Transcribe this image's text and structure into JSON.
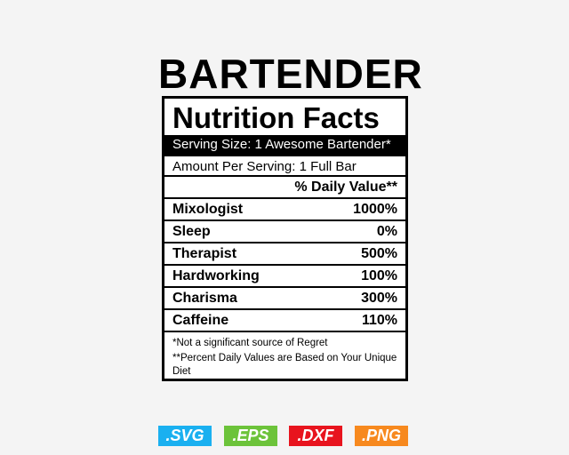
{
  "title": "BARTENDER",
  "label": {
    "heading": "Nutrition Facts",
    "serving": "Serving Size: 1 Awesome Bartender*",
    "amount": "Amount Per Serving: 1 Full Bar",
    "dv_header": "% Daily Value**",
    "rows": [
      {
        "name": "Mixologist",
        "value": "1000%"
      },
      {
        "name": "Sleep",
        "value": "0%"
      },
      {
        "name": "Therapist",
        "value": "500%"
      },
      {
        "name": "Hardworking",
        "value": "100%"
      },
      {
        "name": "Charisma",
        "value": "300%"
      },
      {
        "name": "Caffeine",
        "value": "110%"
      }
    ],
    "note1": "*Not a significant source of Regret",
    "note2": "**Percent Daily Values are Based on Your Unique Diet"
  },
  "badges": [
    {
      "label": ".SVG",
      "color": "#1ab0f0"
    },
    {
      "label": ".EPS",
      "color": "#6cc33a"
    },
    {
      "label": ".DXF",
      "color": "#e8141e"
    },
    {
      "label": ".PNG",
      "color": "#f7891e"
    }
  ]
}
